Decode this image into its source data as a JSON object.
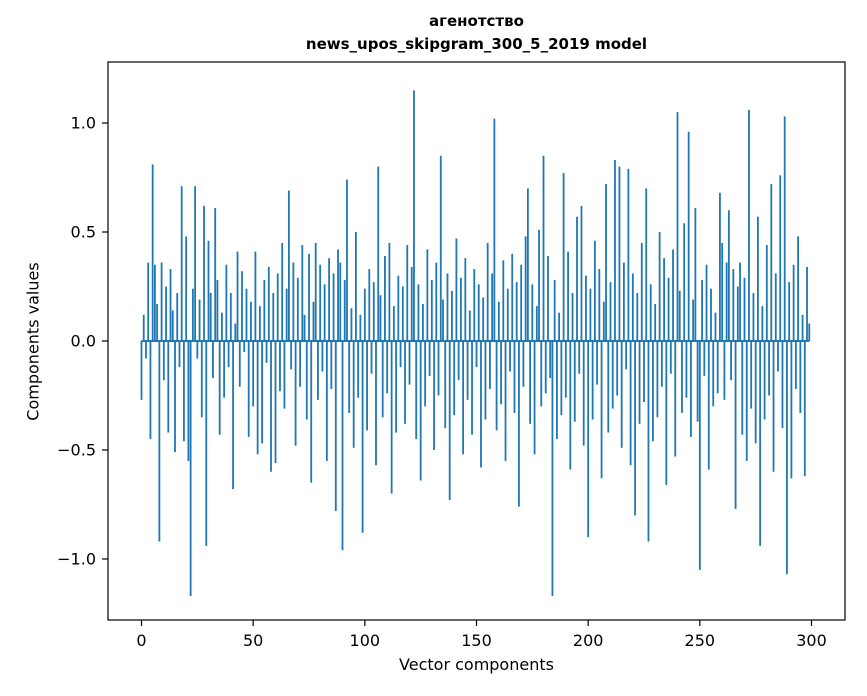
{
  "chart_data": {
    "type": "bar",
    "title_lines": [
      "агенотство",
      "news_upos_skipgram_300_5_2019 model"
    ],
    "xlabel": "Vector components",
    "ylabel": "Components values",
    "x_start": 0,
    "n_points": 300,
    "xticks": [
      0,
      50,
      100,
      150,
      200,
      250,
      300
    ],
    "yticks": [
      -1.0,
      -0.5,
      0.0,
      0.5,
      1.0
    ],
    "ytick_labels": [
      "−1.0",
      "−0.5",
      "0.0",
      "0.5",
      "1.0"
    ],
    "xlim": [
      -15,
      315
    ],
    "ylim": [
      -1.28,
      1.28
    ],
    "bar_color": "#1f77b4",
    "grid": false,
    "legend": null,
    "values": [
      -0.27,
      0.12,
      -0.08,
      0.36,
      -0.45,
      0.81,
      0.35,
      0.17,
      -0.92,
      0.36,
      -0.18,
      0.25,
      -0.42,
      0.33,
      0.14,
      -0.51,
      0.22,
      -0.12,
      0.71,
      -0.46,
      0.48,
      -0.55,
      -1.17,
      0.24,
      0.71,
      -0.08,
      0.19,
      -0.35,
      0.62,
      -0.94,
      0.46,
      0.22,
      -0.17,
      0.61,
      0.28,
      -0.43,
      0.13,
      -0.26,
      0.35,
      -0.12,
      0.22,
      -0.68,
      0.08,
      0.41,
      -0.21,
      0.32,
      -0.05,
      0.24,
      -0.44,
      0.18,
      -0.3,
      0.41,
      -0.52,
      0.16,
      -0.47,
      0.28,
      -0.1,
      0.34,
      -0.6,
      0.22,
      -0.56,
      0.31,
      -0.23,
      0.45,
      -0.31,
      0.24,
      0.69,
      -0.13,
      0.36,
      -0.48,
      0.29,
      -0.21,
      0.44,
      0.12,
      -0.36,
      0.4,
      -0.65,
      0.18,
      0.45,
      -0.27,
      0.35,
      -0.14,
      0.26,
      -0.55,
      0.38,
      -0.22,
      0.31,
      -0.78,
      0.42,
      0.36,
      -0.96,
      0.28,
      0.74,
      -0.33,
      0.15,
      -0.49,
      0.5,
      -0.26,
      0.12,
      -0.88,
      0.24,
      -0.41,
      0.33,
      -0.15,
      0.27,
      -0.57,
      0.8,
      0.21,
      -0.35,
      0.39,
      -0.24,
      0.45,
      -0.7,
      0.16,
      -0.42,
      0.3,
      -0.12,
      0.25,
      -0.38,
      0.44,
      -0.2,
      0.34,
      1.15,
      -0.45,
      0.26,
      -0.64,
      0.17,
      -0.3,
      0.42,
      -0.16,
      0.28,
      -0.5,
      0.36,
      -0.25,
      0.85,
      0.19,
      -0.4,
      0.31,
      -0.73,
      0.23,
      -0.34,
      0.47,
      -0.18,
      0.29,
      -0.52,
      0.38,
      -0.27,
      0.14,
      -0.43,
      0.33,
      -0.12,
      0.26,
      -0.58,
      0.2,
      -0.36,
      0.45,
      -0.22,
      0.31,
      1.02,
      -0.41,
      0.18,
      -0.29,
      0.37,
      -0.55,
      0.24,
      -0.14,
      0.4,
      -0.33,
      0.27,
      -0.76,
      0.35,
      -0.21,
      0.48,
      0.7,
      -0.38,
      0.26,
      -0.52,
      0.16,
      0.51,
      -0.3,
      0.85,
      -0.24,
      0.39,
      -0.17,
      -1.17,
      0.28,
      -0.45,
      0.13,
      -0.34,
      0.77,
      -0.26,
      0.41,
      -0.59,
      0.22,
      -0.37,
      0.57,
      -0.15,
      0.62,
      -0.48,
      0.3,
      -0.9,
      0.24,
      -0.36,
      0.46,
      -0.2,
      0.33,
      -0.63,
      0.18,
      0.72,
      -0.42,
      0.27,
      -0.31,
      0.83,
      -0.25,
      0.8,
      -0.49,
      0.36,
      -0.13,
      0.79,
      -0.57,
      0.31,
      -0.8,
      0.22,
      -0.38,
      0.45,
      -0.28,
      0.7,
      -0.92,
      0.26,
      -0.46,
      0.17,
      -0.35,
      0.5,
      -0.21,
      0.38,
      -0.66,
      0.29,
      -0.15,
      0.42,
      -0.53,
      1.05,
      0.23,
      -0.33,
      0.54,
      -0.26,
      0.96,
      -0.44,
      0.19,
      0.61,
      -0.37,
      -1.05,
      0.28,
      -0.16,
      0.35,
      -0.59,
      0.24,
      -0.3,
      0.13,
      -0.24,
      0.68,
      0.45,
      -0.27,
      0.36,
      0.6,
      -0.18,
      0.33,
      -0.77,
      0.25,
      0.36,
      -0.43,
      0.29,
      -0.55,
      1.06,
      -0.31,
      0.22,
      -0.47,
      0.57,
      -0.94,
      0.16,
      -0.36,
      0.44,
      -0.25,
      0.72,
      -0.6,
      0.31,
      -0.14,
      0.76,
      -0.4,
      1.03,
      -1.07,
      0.27,
      -0.63,
      0.35,
      -0.22,
      0.48,
      -0.33,
      0.12,
      -0.62,
      0.34,
      0.08
    ]
  }
}
